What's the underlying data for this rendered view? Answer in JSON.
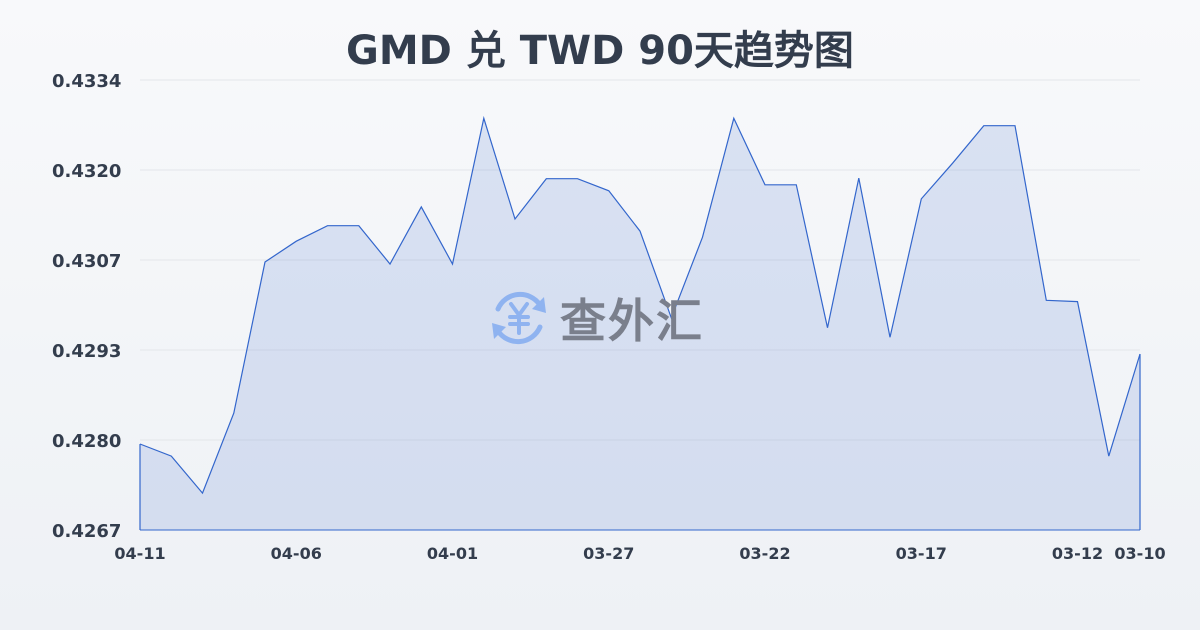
{
  "chart_data": {
    "type": "area",
    "title": "GMD 兑 TWD 90天趋势图",
    "xlabel": "",
    "ylabel": "",
    "ylim": [
      0.4267,
      0.4334
    ],
    "yticks": [
      "0.4334",
      "0.4320",
      "0.4307",
      "0.4293",
      "0.4280",
      "0.4267"
    ],
    "xticks": [
      "04-11",
      "04-06",
      "04-01",
      "03-27",
      "03-22",
      "03-17",
      "03-12",
      "03-10"
    ],
    "grid": true,
    "colors": {
      "line": "#3366cc",
      "fill": "#3366cc"
    },
    "x": [
      "04-11",
      "04-10",
      "04-09",
      "04-08",
      "04-07",
      "04-06",
      "04-05",
      "04-04",
      "04-03",
      "04-02",
      "04-01",
      "03-31",
      "03-30",
      "03-29",
      "03-28",
      "03-27",
      "03-26",
      "03-25",
      "03-24",
      "03-23",
      "03-22",
      "03-21",
      "03-20",
      "03-19",
      "03-18",
      "03-17",
      "03-16",
      "03-15",
      "03-14",
      "03-13",
      "03-12",
      "03-11",
      "03-10"
    ],
    "series": [
      {
        "values": [
          0.42798,
          0.4278,
          0.42725,
          0.42844,
          0.43069,
          0.431,
          0.43123,
          0.43123,
          0.43066,
          0.43151,
          0.43066,
          0.43283,
          0.43133,
          0.43193,
          0.43193,
          0.43175,
          0.43115,
          0.42986,
          0.43106,
          0.43283,
          0.43184,
          0.43184,
          0.42971,
          0.43194,
          0.42957,
          0.43163,
          0.43216,
          0.43272,
          0.43272,
          0.43012,
          0.4301,
          0.4278,
          0.42932
        ]
      }
    ]
  },
  "watermark": {
    "text": "查外汇",
    "icon": "yen-exchange-icon"
  }
}
